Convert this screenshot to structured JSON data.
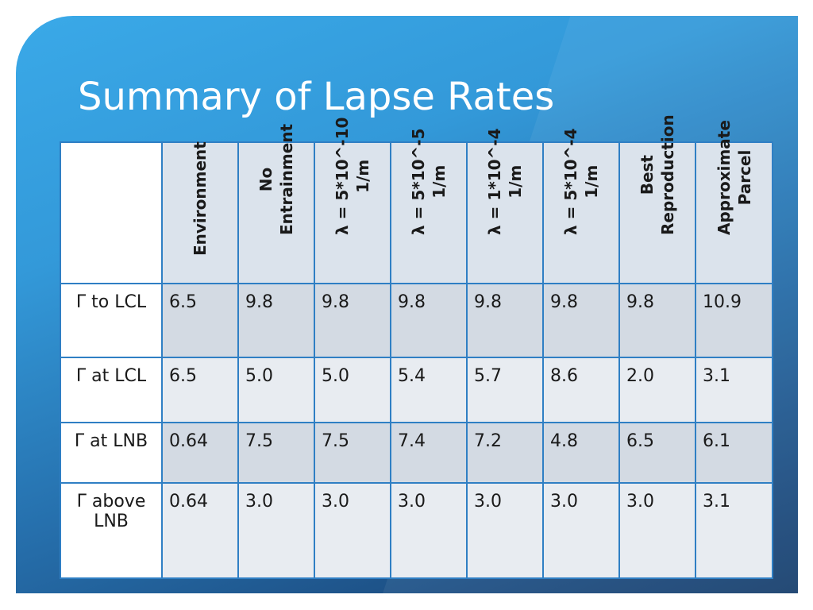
{
  "slide": {
    "title": "Summary of Lapse Rates"
  },
  "table": {
    "columns": [
      {
        "line1": "Environment",
        "line2": ""
      },
      {
        "line1": "No",
        "line2": "Entrainment"
      },
      {
        "line1": "λ = 5*10^-10",
        "line2": "1/m"
      },
      {
        "line1": "λ = 5*10^-5",
        "line2": "1/m"
      },
      {
        "line1": "λ = 1*10^-4",
        "line2": "1/m"
      },
      {
        "line1": "λ = 5*10^-4",
        "line2": "1/m"
      },
      {
        "line1": "Best",
        "line2": "Reproduction"
      },
      {
        "line1": "Approximate",
        "line2": "Parcel"
      }
    ],
    "rows": [
      {
        "label": "Γ to LCL",
        "values": [
          "6.5",
          "9.8",
          "9.8",
          "9.8",
          "9.8",
          "9.8",
          "9.8",
          "10.9"
        ]
      },
      {
        "label": "Γ at LCL",
        "values": [
          "6.5",
          "5.0",
          "5.0",
          "5.4",
          "5.7",
          "8.6",
          "2.0",
          "3.1"
        ]
      },
      {
        "label": "Γ at LNB",
        "values": [
          "0.64",
          "7.5",
          "7.5",
          "7.4",
          "7.2",
          "4.8",
          "6.5",
          "6.1"
        ]
      },
      {
        "label": "Γ above LNB",
        "values": [
          "0.64",
          "3.0",
          "3.0",
          "3.0",
          "3.0",
          "3.0",
          "3.0",
          "3.1"
        ]
      }
    ]
  }
}
